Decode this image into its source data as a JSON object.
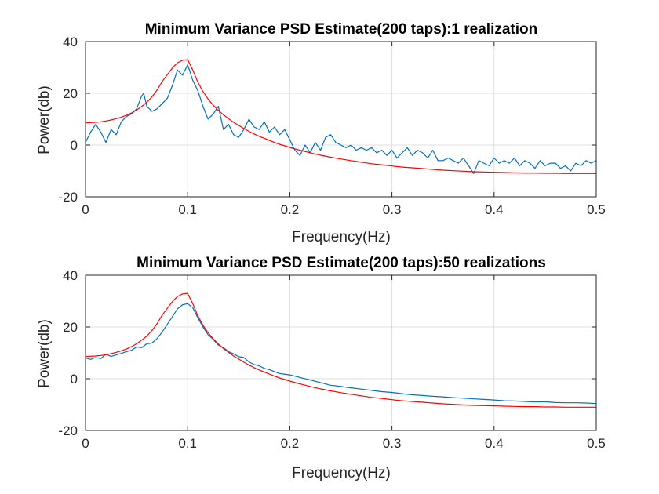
{
  "figure": {
    "background": "#ffffff"
  },
  "chart_data": [
    {
      "type": "line",
      "title": "Minimum Variance PSD Estimate(200 taps):1 realization",
      "xlabel": "Frequency(Hz)",
      "ylabel": "Power(db)",
      "xlim": [
        0,
        0.5
      ],
      "ylim": [
        -20,
        40
      ],
      "xticks": [
        0,
        0.1,
        0.2,
        0.3,
        0.4,
        0.5
      ],
      "xtick_labels": [
        "0",
        "0.1",
        "0.2",
        "0.3",
        "0.4",
        "0.5"
      ],
      "yticks": [
        -20,
        0,
        20,
        40
      ],
      "ytick_labels": [
        "-20",
        "0",
        "20",
        "40"
      ],
      "grid": true,
      "series": [
        {
          "color": "#0072bd",
          "x": [
            0,
            0.005,
            0.01,
            0.015,
            0.02,
            0.025,
            0.03,
            0.035,
            0.04,
            0.045,
            0.05,
            0.055,
            0.057,
            0.06,
            0.065,
            0.07,
            0.075,
            0.08,
            0.085,
            0.09,
            0.095,
            0.1,
            0.105,
            0.11,
            0.115,
            0.12,
            0.125,
            0.13,
            0.135,
            0.14,
            0.145,
            0.15,
            0.155,
            0.16,
            0.165,
            0.17,
            0.175,
            0.18,
            0.185,
            0.19,
            0.195,
            0.2,
            0.205,
            0.21,
            0.215,
            0.22,
            0.225,
            0.23,
            0.235,
            0.24,
            0.245,
            0.25,
            0.255,
            0.26,
            0.265,
            0.27,
            0.275,
            0.28,
            0.285,
            0.29,
            0.295,
            0.3,
            0.305,
            0.31,
            0.315,
            0.32,
            0.325,
            0.33,
            0.335,
            0.34,
            0.345,
            0.35,
            0.355,
            0.36,
            0.365,
            0.37,
            0.375,
            0.38,
            0.385,
            0.39,
            0.395,
            0.4,
            0.405,
            0.41,
            0.415,
            0.42,
            0.425,
            0.43,
            0.435,
            0.44,
            0.445,
            0.45,
            0.455,
            0.46,
            0.465,
            0.47,
            0.475,
            0.48,
            0.485,
            0.49,
            0.495,
            0.5
          ],
          "y": [
            1,
            5,
            8,
            5,
            1,
            6,
            4,
            9,
            11,
            12,
            14,
            19,
            20,
            15,
            13,
            14,
            16,
            18,
            23,
            29,
            27,
            31,
            25,
            21,
            15,
            10,
            12,
            15,
            6,
            8,
            4,
            3,
            6,
            10,
            7,
            6,
            9,
            5,
            7,
            4,
            6,
            2,
            -2,
            -4,
            0,
            -3,
            1,
            -2,
            3,
            4,
            1,
            0,
            -1,
            0,
            -2,
            -1,
            -2,
            -1,
            -3,
            -2,
            -4,
            -2,
            -5,
            -3,
            -1,
            -4,
            -2,
            -3,
            -5,
            -2,
            -6,
            -6,
            -5,
            -6,
            -7,
            -5,
            -8,
            -11,
            -6,
            -7,
            -8,
            -5,
            -7,
            -6,
            -7,
            -5,
            -8,
            -6,
            -7,
            -9,
            -6,
            -8,
            -7,
            -7,
            -9,
            -8,
            -10,
            -7,
            -8,
            -6,
            -7,
            -6
          ]
        },
        {
          "color": "#ff0000",
          "x": [
            0,
            0.005,
            0.01,
            0.015,
            0.02,
            0.025,
            0.03,
            0.035,
            0.04,
            0.045,
            0.05,
            0.055,
            0.06,
            0.065,
            0.07,
            0.075,
            0.08,
            0.085,
            0.09,
            0.095,
            0.1,
            0.105,
            0.11,
            0.115,
            0.12,
            0.125,
            0.13,
            0.135,
            0.14,
            0.145,
            0.15,
            0.155,
            0.16,
            0.165,
            0.17,
            0.175,
            0.18,
            0.185,
            0.19,
            0.195,
            0.2,
            0.21,
            0.22,
            0.23,
            0.24,
            0.25,
            0.26,
            0.27,
            0.28,
            0.29,
            0.3,
            0.31,
            0.32,
            0.33,
            0.34,
            0.35,
            0.36,
            0.37,
            0.38,
            0.39,
            0.4,
            0.41,
            0.42,
            0.43,
            0.44,
            0.45,
            0.46,
            0.47,
            0.48,
            0.49,
            0.5
          ],
          "y": [
            8.6,
            8.7,
            8.8,
            9.0,
            9.3,
            9.7,
            10.2,
            10.8,
            11.5,
            12.4,
            13.5,
            14.9,
            16.5,
            18.6,
            21.2,
            24.5,
            27.2,
            29.8,
            31.8,
            32.8,
            33.0,
            29.0,
            24.3,
            20.7,
            17.8,
            15.4,
            13.4,
            11.7,
            10.2,
            8.8,
            7.6,
            6.4,
            5.3,
            4.3,
            3.4,
            2.6,
            1.8,
            1.0,
            0.3,
            -0.3,
            -0.9,
            -2.0,
            -3.0,
            -3.9,
            -4.7,
            -5.4,
            -6.0,
            -6.6,
            -7.2,
            -7.6,
            -8.1,
            -8.5,
            -8.8,
            -9.1,
            -9.4,
            -9.7,
            -9.9,
            -10.1,
            -10.3,
            -10.4,
            -10.5,
            -10.6,
            -10.7,
            -10.8,
            -10.8,
            -10.9,
            -10.9,
            -11.0,
            -11.0,
            -11.0,
            -11.0
          ]
        }
      ]
    },
    {
      "type": "line",
      "title": "Minimum Variance PSD Estimate(200 taps):50 realizations",
      "xlabel": "Frequency(Hz)",
      "ylabel": "Power(db)",
      "xlim": [
        0,
        0.5
      ],
      "ylim": [
        -20,
        40
      ],
      "xticks": [
        0,
        0.1,
        0.2,
        0.3,
        0.4,
        0.5
      ],
      "xtick_labels": [
        "0",
        "0.1",
        "0.2",
        "0.3",
        "0.4",
        "0.5"
      ],
      "yticks": [
        -20,
        0,
        20,
        40
      ],
      "ytick_labels": [
        "-20",
        "0",
        "20",
        "40"
      ],
      "grid": true,
      "series": [
        {
          "color": "#0072bd",
          "x": [
            0,
            0.005,
            0.01,
            0.015,
            0.02,
            0.025,
            0.03,
            0.035,
            0.04,
            0.045,
            0.05,
            0.055,
            0.06,
            0.065,
            0.07,
            0.075,
            0.08,
            0.085,
            0.09,
            0.095,
            0.1,
            0.105,
            0.11,
            0.115,
            0.12,
            0.125,
            0.13,
            0.135,
            0.14,
            0.145,
            0.15,
            0.155,
            0.16,
            0.165,
            0.17,
            0.175,
            0.18,
            0.19,
            0.2,
            0.21,
            0.22,
            0.23,
            0.24,
            0.25,
            0.26,
            0.27,
            0.28,
            0.29,
            0.3,
            0.31,
            0.32,
            0.33,
            0.34,
            0.35,
            0.36,
            0.37,
            0.38,
            0.39,
            0.4,
            0.41,
            0.42,
            0.43,
            0.44,
            0.45,
            0.46,
            0.47,
            0.48,
            0.49,
            0.5
          ],
          "y": [
            8,
            7.5,
            8.2,
            7.8,
            9.5,
            8.6,
            9.2,
            9.8,
            10.5,
            11,
            12.3,
            12,
            13.5,
            13.8,
            15.5,
            18,
            21,
            24,
            27,
            28.6,
            29,
            27.5,
            23.5,
            20,
            17,
            15.2,
            13,
            12,
            10.5,
            9.6,
            8.5,
            8.2,
            6.5,
            5.5,
            5.0,
            4.0,
            3.5,
            2.0,
            1.5,
            0.5,
            -0.5,
            -1.5,
            -2.5,
            -3.0,
            -3.5,
            -4.0,
            -4.5,
            -5.0,
            -5.3,
            -5.8,
            -6.2,
            -6.5,
            -6.8,
            -7.0,
            -7.3,
            -7.5,
            -7.8,
            -8.0,
            -8.2,
            -8.5,
            -8.6,
            -8.8,
            -9.0,
            -8.9,
            -9.2,
            -9.3,
            -9.3,
            -9.4,
            -9.6
          ]
        },
        {
          "color": "#ff0000",
          "x": [
            0,
            0.005,
            0.01,
            0.015,
            0.02,
            0.025,
            0.03,
            0.035,
            0.04,
            0.045,
            0.05,
            0.055,
            0.06,
            0.065,
            0.07,
            0.075,
            0.08,
            0.085,
            0.09,
            0.095,
            0.1,
            0.105,
            0.11,
            0.115,
            0.12,
            0.125,
            0.13,
            0.135,
            0.14,
            0.145,
            0.15,
            0.155,
            0.16,
            0.165,
            0.17,
            0.175,
            0.18,
            0.185,
            0.19,
            0.195,
            0.2,
            0.21,
            0.22,
            0.23,
            0.24,
            0.25,
            0.26,
            0.27,
            0.28,
            0.29,
            0.3,
            0.31,
            0.32,
            0.33,
            0.34,
            0.35,
            0.36,
            0.37,
            0.38,
            0.39,
            0.4,
            0.41,
            0.42,
            0.43,
            0.44,
            0.45,
            0.46,
            0.47,
            0.48,
            0.49,
            0.5
          ],
          "y": [
            8.6,
            8.7,
            8.8,
            9.0,
            9.3,
            9.7,
            10.2,
            10.8,
            11.5,
            12.4,
            13.5,
            14.9,
            16.5,
            18.6,
            21.2,
            24.5,
            27.2,
            29.8,
            31.8,
            32.8,
            33.0,
            29.0,
            24.3,
            20.7,
            17.8,
            15.4,
            13.4,
            11.7,
            10.2,
            8.8,
            7.6,
            6.4,
            5.3,
            4.3,
            3.4,
            2.6,
            1.8,
            1.0,
            0.3,
            -0.3,
            -0.9,
            -2.0,
            -3.0,
            -3.9,
            -4.7,
            -5.4,
            -6.0,
            -6.6,
            -7.2,
            -7.6,
            -8.1,
            -8.5,
            -8.8,
            -9.1,
            -9.4,
            -9.7,
            -9.9,
            -10.1,
            -10.3,
            -10.4,
            -10.5,
            -10.6,
            -10.7,
            -10.8,
            -10.8,
            -10.9,
            -10.9,
            -11.0,
            -11.0,
            -11.0,
            -11.0
          ]
        }
      ]
    }
  ]
}
